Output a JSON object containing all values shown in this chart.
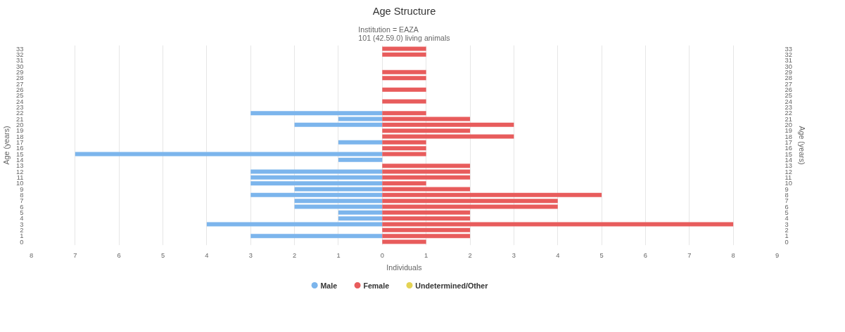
{
  "chart_data": {
    "type": "bar",
    "orientation": "horizontal",
    "title": "Age Structure",
    "subtitle": "Institution = EAZA\n101 (42.59.0) living animals",
    "xlabel": "Individuals",
    "ylabel": "Age (years)",
    "y2label": "Age (years)",
    "categories": [
      "33",
      "32",
      "31",
      "30",
      "29",
      "28",
      "27",
      "26",
      "25",
      "24",
      "23",
      "22",
      "21",
      "20",
      "19",
      "18",
      "17",
      "16",
      "15",
      "14",
      "13",
      "12",
      "11",
      "10",
      "9",
      "8",
      "7",
      "6",
      "5",
      "4",
      "3",
      "2",
      "1",
      "0"
    ],
    "series": [
      {
        "name": "Male",
        "color": "#7cb5ec",
        "values": [
          0,
          0,
          0,
          0,
          0,
          0,
          0,
          0,
          0,
          0,
          0,
          -3,
          -1,
          -2,
          0,
          0,
          -1,
          0,
          -7,
          -1,
          0,
          -3,
          -3,
          -3,
          -2,
          -3,
          -2,
          -2,
          -1,
          -1,
          -4,
          0,
          -3,
          0
        ]
      },
      {
        "name": "Female",
        "color": "#e85c5c",
        "values": [
          1,
          1,
          0,
          0,
          1,
          1,
          0,
          1,
          0,
          1,
          0,
          1,
          2,
          3,
          2,
          3,
          1,
          1,
          1,
          0,
          2,
          2,
          2,
          1,
          2,
          5,
          4,
          4,
          2,
          2,
          8,
          2,
          2,
          1
        ]
      },
      {
        "name": "Undetermined/Other",
        "color": "#e4d354",
        "values": [
          0,
          0,
          0,
          0,
          0,
          0,
          0,
          0,
          0,
          0,
          0,
          0,
          0,
          0,
          0,
          0,
          0,
          0,
          0,
          0,
          0,
          0,
          0,
          0,
          0,
          0,
          0,
          0,
          0,
          0,
          0,
          0,
          0,
          0
        ]
      }
    ],
    "xlim": [
      -8,
      9
    ],
    "xticks": [
      {
        "value": -8,
        "label": "8"
      },
      {
        "value": -7,
        "label": "7"
      },
      {
        "value": -6,
        "label": "6"
      },
      {
        "value": -5,
        "label": "5"
      },
      {
        "value": -4,
        "label": "4"
      },
      {
        "value": -3,
        "label": "3"
      },
      {
        "value": -2,
        "label": "2"
      },
      {
        "value": -1,
        "label": "1"
      },
      0,
      1,
      2,
      3,
      4,
      5,
      6,
      7,
      8,
      9
    ],
    "grid": "x",
    "legend": "bottom"
  }
}
